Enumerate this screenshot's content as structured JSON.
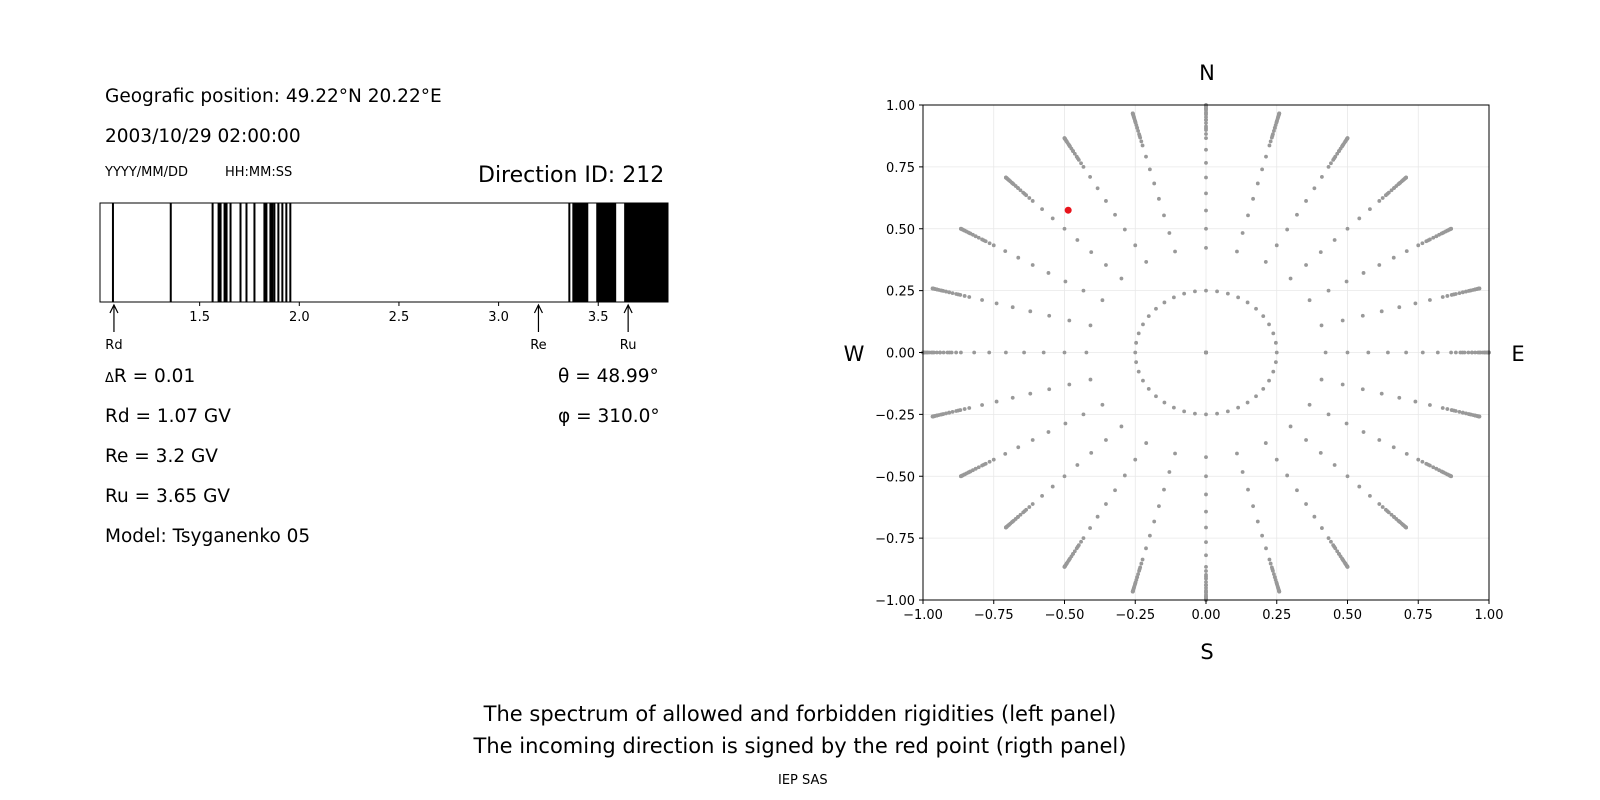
{
  "left": {
    "geo_position": "Geografic position: 49.22°N 20.22°E",
    "datetime": "2003/10/29 02:00:00",
    "date_format": "YYYY/MM/DD",
    "time_format": "HH:MM:SS",
    "direction_id": "Direction ID: 212",
    "delta_r": "R = 0.01",
    "delta_symbol": "Δ",
    "rd": "Rd = 1.07 GV",
    "re": "Re = 3.2 GV",
    "ru": "Ru = 3.65 GV",
    "model": "Model: Tsyganenko 05",
    "theta": "θ = 48.99°",
    "phi": "φ = 310.0°"
  },
  "spectrum": {
    "xlim": [
      1.0,
      3.85
    ],
    "ticks": [
      "1.5",
      "2.0",
      "2.5",
      "3.0",
      "3.5"
    ],
    "tick_values": [
      1.5,
      2.0,
      2.5,
      3.0,
      3.5
    ],
    "forbidden_bands": [
      [
        1.06,
        1.07
      ],
      [
        1.35,
        1.36
      ],
      [
        1.56,
        1.57
      ],
      [
        1.59,
        1.61
      ],
      [
        1.62,
        1.64
      ],
      [
        1.65,
        1.66
      ],
      [
        1.7,
        1.71
      ],
      [
        1.73,
        1.74
      ],
      [
        1.77,
        1.78
      ],
      [
        1.82,
        1.84
      ],
      [
        1.85,
        1.87
      ],
      [
        1.87,
        1.88
      ],
      [
        1.89,
        1.9
      ],
      [
        1.91,
        1.92
      ],
      [
        1.93,
        1.94
      ],
      [
        1.95,
        1.96
      ],
      [
        3.35,
        3.36
      ],
      [
        3.37,
        3.45
      ],
      [
        3.49,
        3.59
      ],
      [
        3.63,
        3.85
      ]
    ],
    "markers": [
      {
        "label": "Rd",
        "value": 1.07
      },
      {
        "label": "Re",
        "value": 3.2
      },
      {
        "label": "Ru",
        "value": 3.65
      }
    ]
  },
  "chart_data": {
    "type": "scatter",
    "xlim": [
      -1.0,
      1.0
    ],
    "ylim": [
      -1.0,
      1.0
    ],
    "x_ticks": [
      "−1.00",
      "−0.75",
      "−0.50",
      "−0.25",
      "0.00",
      "0.25",
      "0.50",
      "0.75",
      "1.00"
    ],
    "y_ticks": [
      "1.00",
      "0.75",
      "0.50",
      "0.25",
      "0.00",
      "−0.25",
      "−0.50",
      "−0.75",
      "−1.00"
    ],
    "tick_values": [
      -1.0,
      -0.75,
      -0.5,
      -0.25,
      0.0,
      0.25,
      0.5,
      0.75,
      1.0
    ],
    "grid": true,
    "compass": {
      "north": "N",
      "south": "S",
      "west": "W",
      "east": "E"
    },
    "grid_directions": {
      "description_free": true,
      "rays": 24,
      "zenith_steps_deg": [
        0,
        5,
        10,
        15,
        20,
        25,
        30,
        35,
        40,
        45,
        50,
        55,
        60,
        65,
        70,
        75,
        80,
        85,
        90
      ],
      "inner_ring_radius": 0.25,
      "inner_ring_points": 40,
      "color": "#999999"
    },
    "highlight": {
      "x": -0.487,
      "y": 0.575,
      "color": "#e8141c"
    }
  },
  "footer": {
    "line1": "The spectrum of allowed and forbidden rigidities (left panel)",
    "line2": "The incoming direction is signed by the red point (rigth panel)",
    "credit": "IEP SAS"
  }
}
